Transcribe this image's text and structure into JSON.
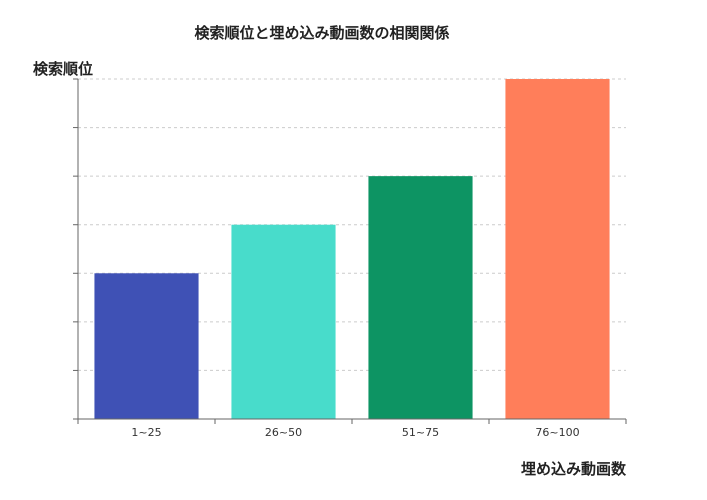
{
  "chart_data": {
    "type": "bar",
    "title": "検索順位と埋め込み動画数の相関関係",
    "ylabel": "検索順位",
    "xlabel": "埋め込み動画数",
    "categories": [
      "1~25",
      "26~50",
      "51~75",
      "76~100"
    ],
    "values": [
      3,
      4,
      5,
      7
    ],
    "ylim": [
      0,
      7
    ],
    "y_ticks": [
      0,
      1,
      2,
      3,
      4,
      5,
      6,
      7
    ],
    "y_tick_labels_shown": false,
    "grid": true,
    "legend": "none",
    "colors": [
      "#3f51b5",
      "#48dccb",
      "#0d9463",
      "#ff7e5a"
    ]
  }
}
